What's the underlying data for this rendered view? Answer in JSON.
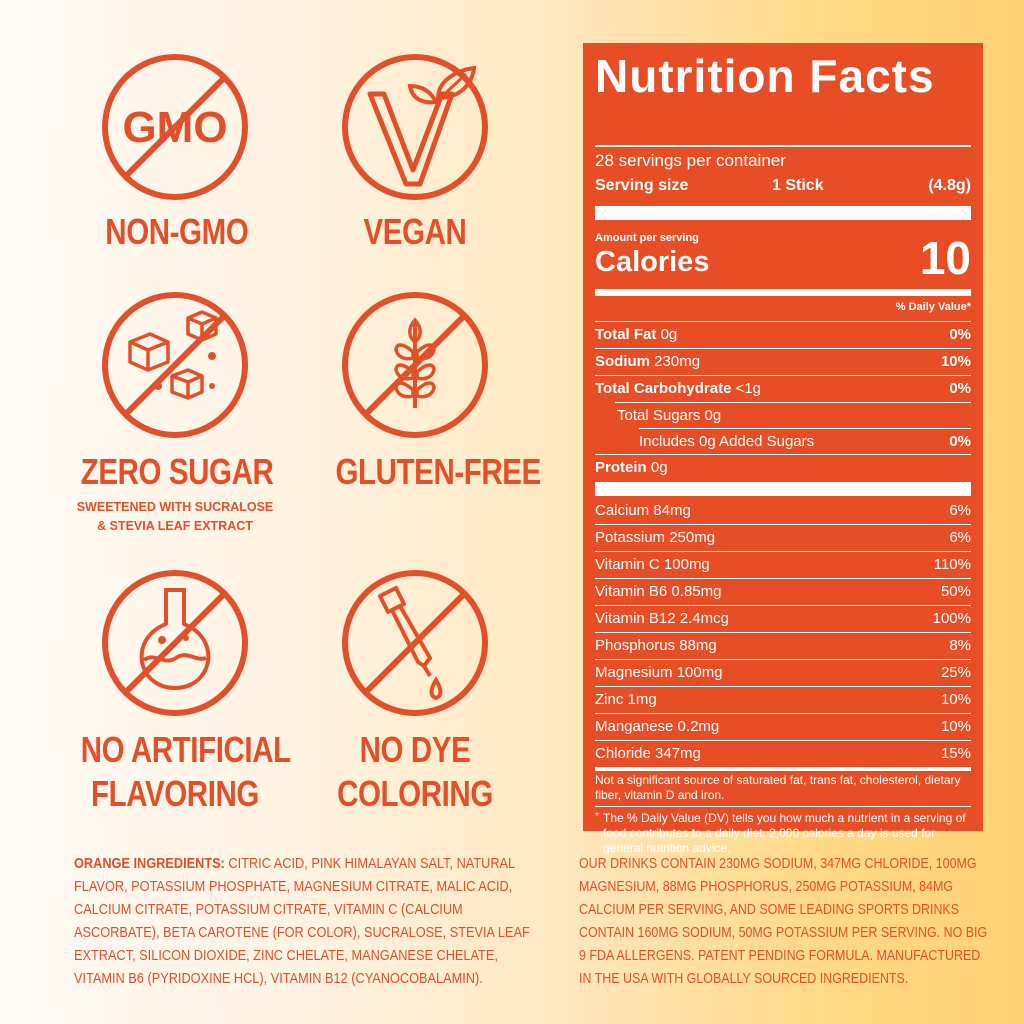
{
  "badges": {
    "non_gmo": {
      "icon_text": "GMO",
      "label": "NON-GMO"
    },
    "vegan": {
      "label": "VEGAN"
    },
    "zero_sugar": {
      "label": "ZERO SUGAR",
      "sub1": "SWEETENED WITH SUCRALOSE",
      "sub2": "& STEVIA LEAF EXTRACT"
    },
    "gluten_free": {
      "label": "GLUTEN-FREE"
    },
    "no_artificial": {
      "label1": "NO ARTIFICIAL",
      "label2": "FLAVORING"
    },
    "no_dye": {
      "label1": "NO DYE",
      "label2": "COLORING"
    }
  },
  "nutrition": {
    "title": "Nutrition Facts",
    "servings": "28 servings per container",
    "serving_size_label": "Serving size",
    "serving_size_value": "1 Stick",
    "serving_size_weight": "(4.8g)",
    "amount_per": "Amount per serving",
    "calories_label": "Calories",
    "calories_value": "10",
    "dv_header": "% Daily Value*",
    "rows": [
      {
        "name": "Total Fat",
        "amount": "0g",
        "dv": "0%"
      },
      {
        "name": "Sodium",
        "amount": "230mg",
        "dv": "10%"
      },
      {
        "name": "Total Carbohydrate",
        "amount": "<1g",
        "dv": "0%"
      },
      {
        "name": "Total Sugars 0g",
        "dv": ""
      },
      {
        "name": "Includes 0g Added Sugars",
        "dv": "0%"
      },
      {
        "name": "Protein",
        "amount": "0g",
        "dv": ""
      }
    ],
    "minerals": [
      {
        "name": "Calcium 84mg",
        "dv": "6%"
      },
      {
        "name": "Potassium 250mg",
        "dv": "6%"
      },
      {
        "name": "Vitamin C 100mg",
        "dv": "110%"
      },
      {
        "name": "Vitamin B6 0.85mg",
        "dv": "50%"
      },
      {
        "name": "Vitamin B12 2.4mcg",
        "dv": "100%"
      },
      {
        "name": "Phosphorus 88mg",
        "dv": "8%"
      },
      {
        "name": "Magnesium 100mg",
        "dv": "25%"
      },
      {
        "name": "Zinc 1mg",
        "dv": "10%"
      },
      {
        "name": "Manganese 0.2mg",
        "dv": "10%"
      },
      {
        "name": "Chloride 347mg",
        "dv": "15%"
      }
    ],
    "footnote1": "Not a significant source of saturated fat, trans fat, cholesterol, dietary fiber, vitamin D and iron.",
    "footnote_star": "*",
    "footnote2": "The % Daily Value (DV) tells you how much a nutrient in a serving of food contributes to a daily diet. 2,000 calories a day is used for general nutrition advice."
  },
  "ingredients": {
    "heading": "ORANGE INGREDIENTS:",
    "text": "CITRIC ACID, PINK HIMALAYAN SALT, NATURAL FLAVOR, POTASSIUM PHOSPHATE, MAGNESIUM CITRATE, MALIC ACID, CALCIUM CITRATE, POTASSIUM CITRATE, VITAMIN C (CALCIUM ASCORBATE), BETA CAROTENE (FOR COLOR), SUCRALOSE, STEVIA LEAF EXTRACT, SILICON DIOXIDE, ZINC CHELATE, MANGANESE CHELATE, VITAMIN B6 (PYRIDOXINE HCL), VITAMIN B12 (CYANOCOBALAMIN)."
  },
  "claims": {
    "text": "OUR DRINKS CONTAIN 230MG SODIUM, 347MG CHLORIDE, 100MG MAGNESIUM, 88MG PHOSPHORUS, 250MG POTASSIUM, 84MG CALCIUM PER SERVING, AND SOME LEADING SPORTS DRINKS CONTAIN 160MG SODIUM, 50MG POTASSIUM PER SERVING. NO BIG 9 FDA ALLERGENS. PATENT PENDING FORMULA. MANUFACTURED IN THE USA WITH GLOBALLY SOURCED INGREDIENTS."
  }
}
